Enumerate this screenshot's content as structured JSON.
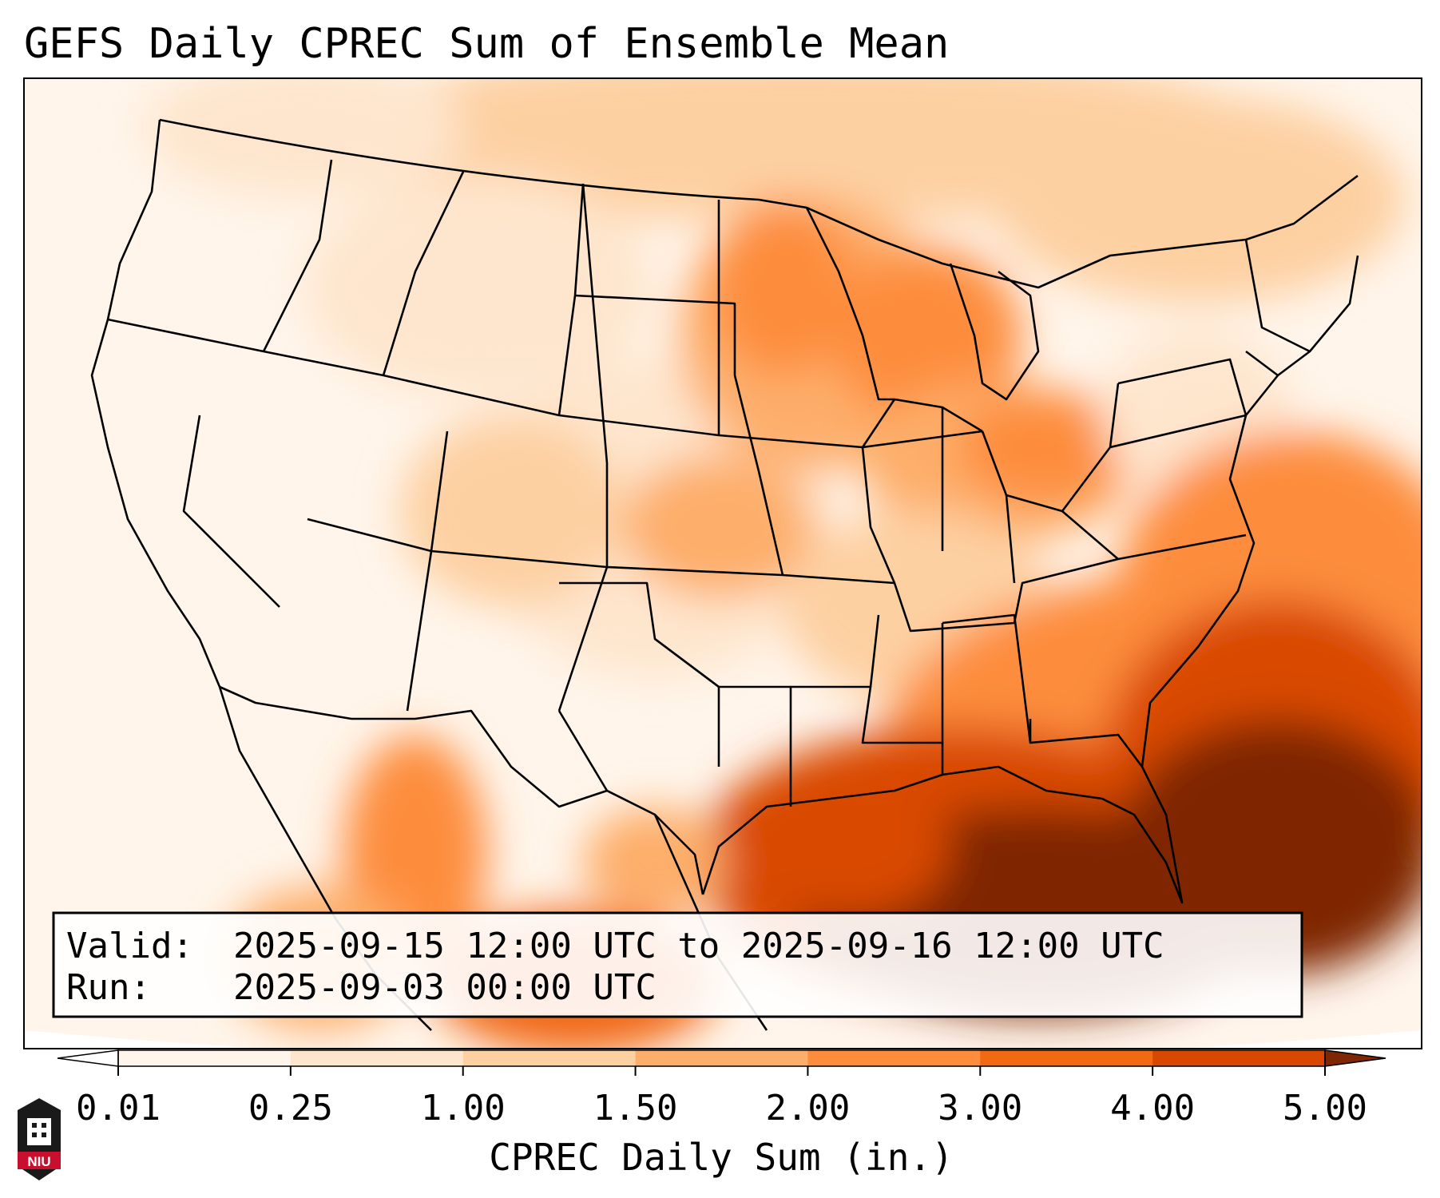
{
  "title": "GEFS Daily CPREC Sum of Ensemble Mean",
  "info_box": {
    "valid_label": "Valid:",
    "valid_value": "2025-09-15 12:00 UTC to 2025-09-16 12:00 UTC",
    "run_label": "Run:",
    "run_value": "2025-09-03 00:00 UTC"
  },
  "colorbar": {
    "label": "CPREC Daily Sum (in.)",
    "ticks": [
      "0.01",
      "0.25",
      "1.00",
      "1.50",
      "2.00",
      "3.00",
      "4.00",
      "5.00"
    ],
    "bins": [
      {
        "from": "0.01",
        "to": "0.25",
        "color": "#fff5eb"
      },
      {
        "from": "0.25",
        "to": "1.00",
        "color": "#fee6ce"
      },
      {
        "from": "1.00",
        "to": "1.50",
        "color": "#fdd0a2"
      },
      {
        "from": "1.50",
        "to": "2.00",
        "color": "#fdae6b"
      },
      {
        "from": "2.00",
        "to": "3.00",
        "color": "#fd8d3c"
      },
      {
        "from": "3.00",
        "to": "4.00",
        "color": "#f16913"
      },
      {
        "from": "4.00",
        "to": "5.00",
        "color": "#d94801"
      }
    ],
    "under_color": "#ffffff",
    "over_color": "#7f2704"
  },
  "logo": {
    "text": "NIU",
    "color": "#c8102e"
  }
}
